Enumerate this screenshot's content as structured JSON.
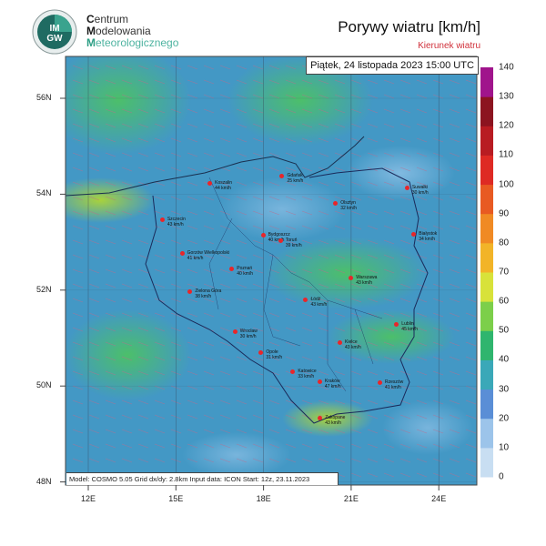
{
  "header": {
    "logo_text": "IMGW",
    "org_line1": {
      "initial": "C",
      "rest": "entrum"
    },
    "org_line2": {
      "initial": "M",
      "rest": "odelowania"
    },
    "org_line3": {
      "initial": "M",
      "rest": "eteorologicznego"
    },
    "title": "Porywy wiatru [km/h]",
    "subtitle": "Kierunek wiatru"
  },
  "map": {
    "date": "Piątek, 24 listopada 2023 15:00 UTC",
    "info": "Model: COSMO 5.05  Grid dx/dy: 2.8km  Input data: ICON  Start: 12z, 23.11.2023",
    "lat_labels": [
      {
        "label": "56N",
        "lat": 56
      },
      {
        "label": "54N",
        "lat": 54
      },
      {
        "label": "52N",
        "lat": 52
      },
      {
        "label": "50N",
        "lat": 50
      },
      {
        "label": "48N",
        "lat": 48
      }
    ],
    "lon_labels": [
      {
        "label": "12E",
        "lon": 12
      },
      {
        "label": "15E",
        "lon": 15
      },
      {
        "label": "18E",
        "lon": 18
      },
      {
        "label": "21E",
        "lon": 21
      },
      {
        "label": "24E",
        "lon": 24
      }
    ],
    "cities": [
      {
        "name": "Koszalin",
        "value": "44 km/h",
        "lon": 16.18,
        "lat": 54.19
      },
      {
        "name": "Gdańsk",
        "value": "25 km/h",
        "lon": 18.65,
        "lat": 54.35
      },
      {
        "name": "Szczecin",
        "value": "43 km/h",
        "lon": 14.55,
        "lat": 53.43
      },
      {
        "name": "Bydgoszcz",
        "value": "40 km/h",
        "lon": 18.0,
        "lat": 53.12
      },
      {
        "name": "Toruń",
        "value": "39 km/h",
        "lon": 18.6,
        "lat": 53.01
      },
      {
        "name": "Gorzów Wielkopolski",
        "value": "41 km/h",
        "lon": 15.23,
        "lat": 52.73
      },
      {
        "name": "Poznań",
        "value": "40 km/h",
        "lon": 16.93,
        "lat": 52.41
      },
      {
        "name": "Zielona Góra",
        "value": "38 km/h",
        "lon": 15.5,
        "lat": 51.94
      },
      {
        "name": "Olsztyn",
        "value": "32 km/h",
        "lon": 20.48,
        "lat": 53.78
      },
      {
        "name": "Suwałki",
        "value": "30 km/h",
        "lon": 22.93,
        "lat": 54.1
      },
      {
        "name": "Białystok",
        "value": "34 km/h",
        "lon": 23.16,
        "lat": 53.13
      },
      {
        "name": "Warszawa",
        "value": "43 km/h",
        "lon": 21.01,
        "lat": 52.23
      },
      {
        "name": "Łódź",
        "value": "43 km/h",
        "lon": 19.46,
        "lat": 51.76
      },
      {
        "name": "Lublin",
        "value": "45 km/h",
        "lon": 22.57,
        "lat": 51.25
      },
      {
        "name": "Wrocław",
        "value": "30 km/h",
        "lon": 17.04,
        "lat": 51.11
      },
      {
        "name": "Opole",
        "value": "31 km/h",
        "lon": 17.93,
        "lat": 50.67
      },
      {
        "name": "Kielce",
        "value": "43 km/h",
        "lon": 20.63,
        "lat": 50.87
      },
      {
        "name": "Katowice",
        "value": "33 km/h",
        "lon": 19.02,
        "lat": 50.26
      },
      {
        "name": "Kraków",
        "value": "47 km/h",
        "lon": 19.94,
        "lat": 50.06
      },
      {
        "name": "Rzeszów",
        "value": "41 km/h",
        "lon": 22.0,
        "lat": 50.04
      },
      {
        "name": "Zakopane",
        "value": "43 km/h",
        "lon": 19.95,
        "lat": 49.3
      }
    ]
  },
  "colorbar": {
    "unit": "km/h",
    "levels": [
      {
        "value": "0",
        "color": "#f4f8fc"
      },
      {
        "value": "10",
        "color": "#c8def2"
      },
      {
        "value": "20",
        "color": "#9cc4ea"
      },
      {
        "value": "30",
        "color": "#5a8ed6"
      },
      {
        "value": "40",
        "color": "#3aa8b8"
      },
      {
        "value": "50",
        "color": "#2fb56e"
      },
      {
        "value": "60",
        "color": "#7ccf4a"
      },
      {
        "value": "70",
        "color": "#d8e23a"
      },
      {
        "value": "80",
        "color": "#f2b428"
      },
      {
        "value": "90",
        "color": "#f08a24"
      },
      {
        "value": "100",
        "color": "#e85a22"
      },
      {
        "value": "110",
        "color": "#de2a24"
      },
      {
        "value": "120",
        "color": "#b81c22"
      },
      {
        "value": "130",
        "color": "#8c1420"
      },
      {
        "value": "140",
        "color": "#a0148c"
      }
    ]
  }
}
